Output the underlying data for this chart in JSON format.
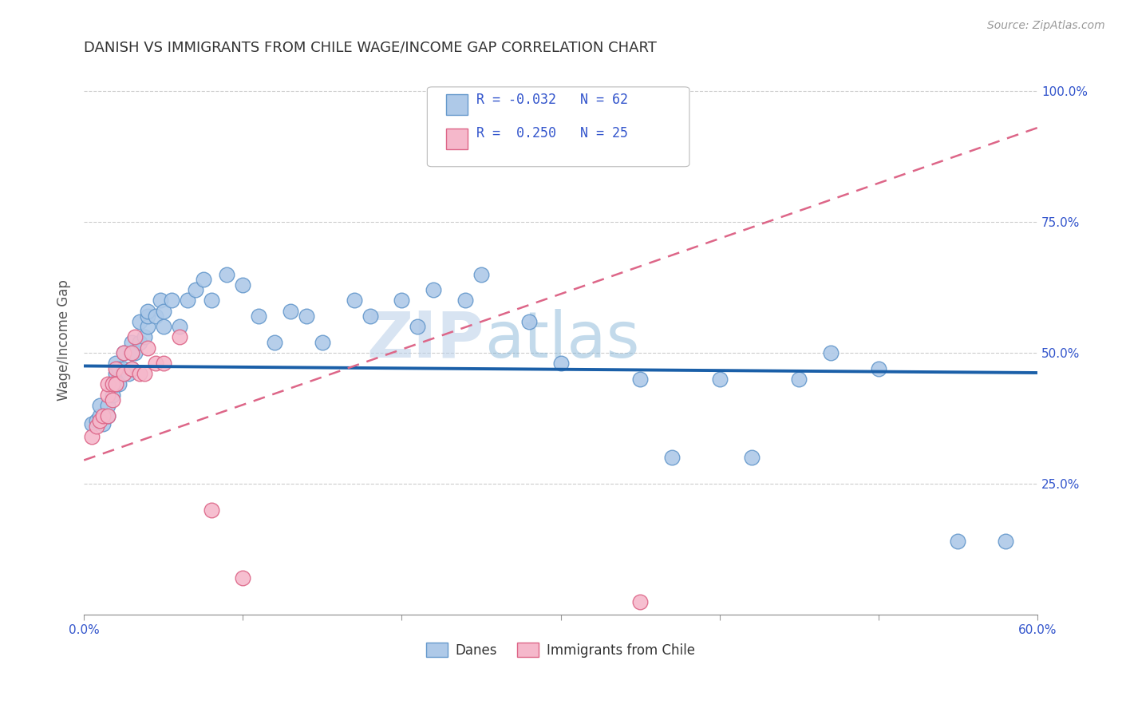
{
  "title": "DANISH VS IMMIGRANTS FROM CHILE WAGE/INCOME GAP CORRELATION CHART",
  "source_text": "Source: ZipAtlas.com",
  "ylabel": "Wage/Income Gap",
  "xmin": 0.0,
  "xmax": 0.6,
  "ymin": 0.0,
  "ymax": 1.05,
  "x_ticks": [
    0.0,
    0.1,
    0.2,
    0.3,
    0.4,
    0.5,
    0.6
  ],
  "x_tick_labels": [
    "0.0%",
    "",
    "",
    "",
    "",
    "",
    "60.0%"
  ],
  "y_ticks": [
    0.0,
    0.25,
    0.5,
    0.75,
    1.0
  ],
  "y_tick_labels": [
    "",
    "25.0%",
    "50.0%",
    "75.0%",
    "100.0%"
  ],
  "danes_color": "#aec9e8",
  "danes_edge_color": "#6699cc",
  "chile_color": "#f5b8cb",
  "chile_edge_color": "#dd6688",
  "danes_line_color": "#1a5fa8",
  "chile_line_color": "#dd6688",
  "legend_label_danes": "Danes",
  "legend_label_chile": "Immigrants from Chile",
  "legend_text_color": "#3355cc",
  "danes_R": -0.032,
  "danes_N": 62,
  "chile_R": 0.25,
  "chile_N": 25,
  "danes_line_y0": 0.475,
  "danes_line_y1": 0.462,
  "chile_line_y0": 0.295,
  "chile_line_y1": 0.93,
  "danes_scatter_x": [
    0.005,
    0.008,
    0.01,
    0.01,
    0.012,
    0.015,
    0.015,
    0.018,
    0.018,
    0.02,
    0.02,
    0.02,
    0.022,
    0.022,
    0.025,
    0.025,
    0.028,
    0.03,
    0.03,
    0.03,
    0.032,
    0.035,
    0.035,
    0.038,
    0.04,
    0.04,
    0.04,
    0.045,
    0.048,
    0.05,
    0.05,
    0.055,
    0.06,
    0.065,
    0.07,
    0.075,
    0.08,
    0.09,
    0.1,
    0.11,
    0.12,
    0.13,
    0.14,
    0.15,
    0.17,
    0.18,
    0.2,
    0.21,
    0.22,
    0.24,
    0.25,
    0.28,
    0.3,
    0.35,
    0.37,
    0.4,
    0.42,
    0.45,
    0.47,
    0.5,
    0.55,
    0.58
  ],
  "danes_scatter_y": [
    0.365,
    0.37,
    0.38,
    0.4,
    0.365,
    0.38,
    0.4,
    0.42,
    0.44,
    0.44,
    0.46,
    0.48,
    0.44,
    0.47,
    0.47,
    0.5,
    0.46,
    0.47,
    0.5,
    0.52,
    0.5,
    0.52,
    0.56,
    0.53,
    0.55,
    0.57,
    0.58,
    0.57,
    0.6,
    0.58,
    0.55,
    0.6,
    0.55,
    0.6,
    0.62,
    0.64,
    0.6,
    0.65,
    0.63,
    0.57,
    0.52,
    0.58,
    0.57,
    0.52,
    0.6,
    0.57,
    0.6,
    0.55,
    0.62,
    0.6,
    0.65,
    0.56,
    0.48,
    0.45,
    0.3,
    0.45,
    0.3,
    0.45,
    0.5,
    0.47,
    0.14,
    0.14
  ],
  "chile_scatter_x": [
    0.005,
    0.008,
    0.01,
    0.012,
    0.015,
    0.015,
    0.015,
    0.018,
    0.018,
    0.02,
    0.02,
    0.025,
    0.025,
    0.03,
    0.03,
    0.032,
    0.035,
    0.038,
    0.04,
    0.045,
    0.05,
    0.06,
    0.08,
    0.1,
    0.35
  ],
  "chile_scatter_y": [
    0.34,
    0.36,
    0.37,
    0.38,
    0.38,
    0.42,
    0.44,
    0.41,
    0.44,
    0.44,
    0.47,
    0.46,
    0.5,
    0.47,
    0.5,
    0.53,
    0.46,
    0.46,
    0.51,
    0.48,
    0.48,
    0.53,
    0.2,
    0.07,
    0.025
  ]
}
